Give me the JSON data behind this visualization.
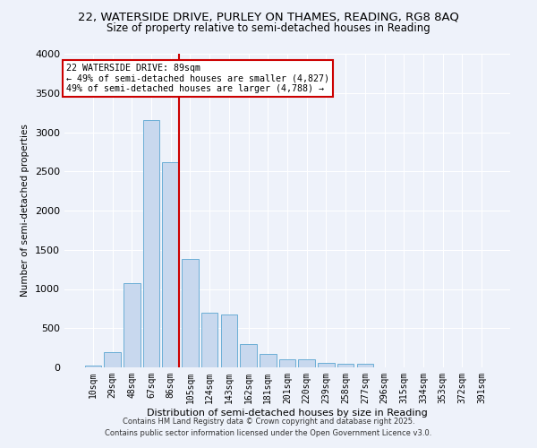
{
  "title_line1": "22, WATERSIDE DRIVE, PURLEY ON THAMES, READING, RG8 8AQ",
  "title_line2": "Size of property relative to semi-detached houses in Reading",
  "xlabel": "Distribution of semi-detached houses by size in Reading",
  "ylabel": "Number of semi-detached properties",
  "categories": [
    "10sqm",
    "29sqm",
    "48sqm",
    "67sqm",
    "86sqm",
    "105sqm",
    "124sqm",
    "143sqm",
    "162sqm",
    "181sqm",
    "201sqm",
    "220sqm",
    "239sqm",
    "258sqm",
    "277sqm",
    "296sqm",
    "315sqm",
    "334sqm",
    "353sqm",
    "372sqm",
    "391sqm"
  ],
  "values": [
    25,
    190,
    1080,
    3150,
    2620,
    1380,
    700,
    680,
    300,
    175,
    100,
    100,
    55,
    45,
    45,
    0,
    0,
    0,
    0,
    0,
    0
  ],
  "bar_color": "#c8d8ee",
  "bar_edge_color": "#6baed6",
  "red_line_bar_index": 4,
  "annotation_title": "22 WATERSIDE DRIVE: 89sqm",
  "annotation_line1": "← 49% of semi-detached houses are smaller (4,827)",
  "annotation_line2": "49% of semi-detached houses are larger (4,788) →",
  "annotation_box_color": "#ffffff",
  "annotation_box_edge_color": "#cc0000",
  "ylim": [
    0,
    4000
  ],
  "yticks": [
    0,
    500,
    1000,
    1500,
    2000,
    2500,
    3000,
    3500,
    4000
  ],
  "footer_line1": "Contains HM Land Registry data © Crown copyright and database right 2025.",
  "footer_line2": "Contains public sector information licensed under the Open Government Licence v3.0.",
  "background_color": "#eef2fa",
  "grid_color": "#ffffff",
  "title_fontsize": 9.5,
  "subtitle_fontsize": 8.5
}
